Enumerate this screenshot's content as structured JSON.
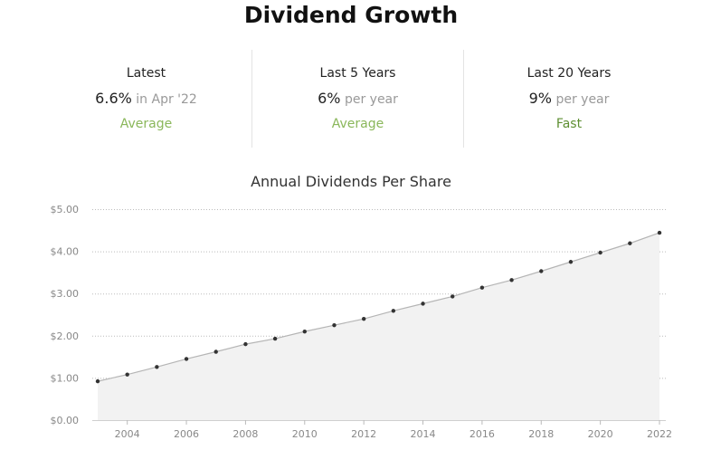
{
  "header": {
    "title": "Dividend Growth"
  },
  "stats": [
    {
      "label": "Latest",
      "value": "6.6%",
      "unit": " in Apr '22",
      "rating": "Average",
      "rating_color": "#8ab75a"
    },
    {
      "label": "Last 5 Years",
      "value": "6%",
      "unit": " per year",
      "rating": "Average",
      "rating_color": "#8ab75a"
    },
    {
      "label": "Last 20 Years",
      "value": "9%",
      "unit": " per year",
      "rating": "Fast",
      "rating_color": "#5e8f32"
    }
  ],
  "chart_data": {
    "type": "area",
    "title": "Annual Dividends Per Share",
    "xlabel": "",
    "ylabel": "",
    "x": [
      2003,
      2004,
      2005,
      2006,
      2007,
      2008,
      2009,
      2010,
      2011,
      2012,
      2013,
      2014,
      2015,
      2016,
      2017,
      2018,
      2019,
      2020,
      2021,
      2022
    ],
    "values": [
      0.92,
      1.08,
      1.26,
      1.45,
      1.62,
      1.8,
      1.93,
      2.1,
      2.25,
      2.4,
      2.59,
      2.76,
      2.93,
      3.14,
      3.32,
      3.53,
      3.75,
      3.97,
      4.19,
      4.44
    ],
    "xlim": [
      2003,
      2022
    ],
    "ylim": [
      0,
      5
    ],
    "yticks": [
      0,
      1,
      2,
      3,
      4,
      5
    ],
    "ytick_labels": [
      "$0.00",
      "$1.00",
      "$2.00",
      "$3.00",
      "$4.00",
      "$5.00"
    ],
    "xticks": [
      2004,
      2006,
      2008,
      2010,
      2012,
      2014,
      2016,
      2018,
      2020,
      2022
    ],
    "grid": true,
    "colors": {
      "line": "#b5b5b5",
      "fill": "#f2f2f2",
      "marker": "#333333",
      "grid": "#bbbbbb",
      "tick_text": "#888888"
    }
  }
}
